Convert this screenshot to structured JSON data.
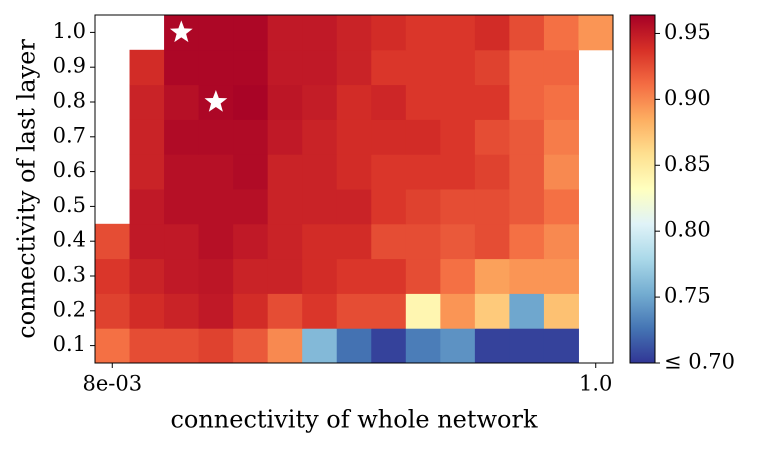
{
  "chart_data": {
    "type": "heatmap",
    "xlabel": "connectivity of whole network",
    "ylabel": "connectivity of last layer",
    "x_categories": [
      "8e-03",
      null,
      null,
      null,
      null,
      null,
      null,
      null,
      null,
      null,
      null,
      null,
      null,
      null,
      "1.0"
    ],
    "y_categories": [
      "0.1",
      "0.2",
      "0.3",
      "0.4",
      "0.5",
      "0.6",
      "0.7",
      "0.8",
      "0.9",
      "1.0"
    ],
    "values": [
      [
        0.91,
        0.925,
        0.925,
        0.93,
        0.92,
        0.9,
        0.76,
        0.725,
        0.705,
        0.73,
        0.74,
        0.705,
        0.705,
        0.705,
        null
      ],
      [
        0.93,
        0.94,
        0.945,
        0.95,
        0.94,
        0.925,
        0.935,
        0.925,
        0.925,
        0.84,
        0.895,
        0.87,
        0.75,
        0.875,
        null
      ],
      [
        0.935,
        0.945,
        0.95,
        0.952,
        0.945,
        0.945,
        0.94,
        0.935,
        0.935,
        0.925,
        0.91,
        0.89,
        0.895,
        0.895,
        null
      ],
      [
        0.925,
        0.95,
        0.95,
        0.955,
        0.95,
        0.945,
        0.94,
        0.94,
        0.925,
        0.925,
        0.92,
        0.925,
        0.91,
        0.9,
        null
      ],
      [
        null,
        0.95,
        0.955,
        0.955,
        0.955,
        0.945,
        0.945,
        0.945,
        0.935,
        0.93,
        0.925,
        0.925,
        0.92,
        0.91,
        null
      ],
      [
        null,
        0.945,
        0.955,
        0.955,
        0.958,
        0.945,
        0.945,
        0.94,
        0.935,
        0.935,
        0.935,
        0.93,
        0.92,
        0.9,
        null
      ],
      [
        null,
        0.945,
        0.958,
        0.958,
        0.958,
        0.95,
        0.945,
        0.94,
        0.94,
        0.94,
        0.935,
        0.925,
        0.92,
        0.905,
        null
      ],
      [
        null,
        0.945,
        0.955,
        0.96,
        0.962,
        0.952,
        0.948,
        0.94,
        0.943,
        0.935,
        0.935,
        0.935,
        0.915,
        0.91,
        null
      ],
      [
        null,
        0.94,
        0.96,
        0.96,
        0.96,
        0.95,
        0.95,
        0.945,
        0.935,
        0.935,
        0.935,
        0.93,
        0.915,
        0.915,
        null
      ],
      [
        null,
        null,
        0.96,
        0.96,
        0.96,
        0.95,
        0.95,
        0.945,
        0.94,
        0.935,
        0.935,
        0.94,
        0.925,
        0.91,
        0.895
      ]
    ],
    "highlighted": [
      {
        "col": 2,
        "row": 9
      },
      {
        "col": 3,
        "row": 7
      }
    ],
    "colormap": "RdYlBu_r",
    "clim": [
      0.7,
      0.964
    ],
    "cticks": [
      {
        "value": 0.7,
        "label": "≤ 0.70"
      },
      {
        "value": 0.75,
        "label": "0.75"
      },
      {
        "value": 0.8,
        "label": "0.80"
      },
      {
        "value": 0.85,
        "label": "0.85"
      },
      {
        "value": 0.9,
        "label": "0.90"
      },
      {
        "value": 0.95,
        "label": "0.95"
      }
    ]
  }
}
